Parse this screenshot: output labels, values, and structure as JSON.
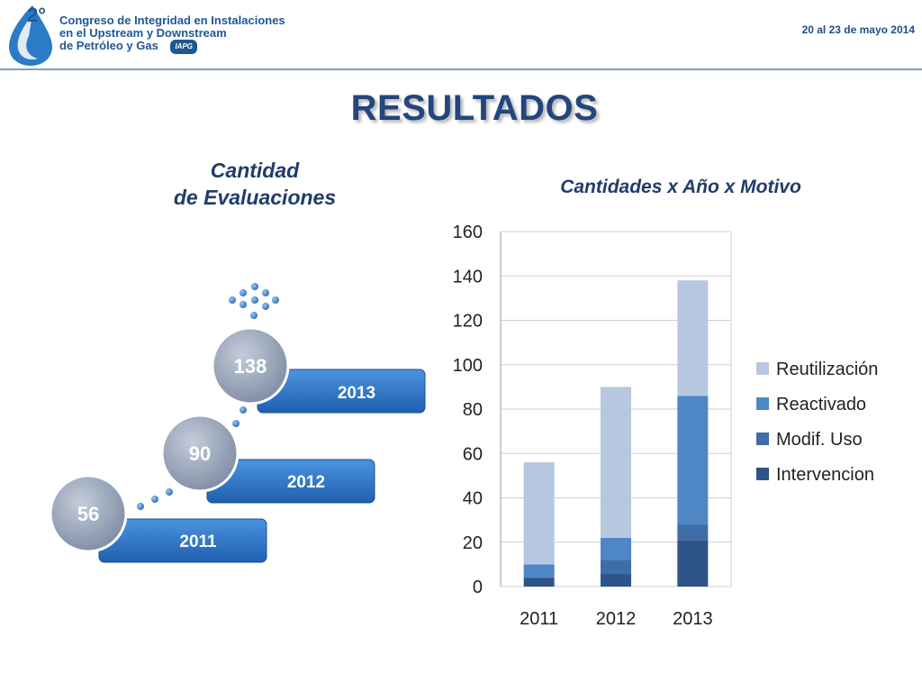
{
  "header": {
    "org_line1": "Congreso de Integridad en Instalaciones",
    "org_line2": "en el Upstream y Downstream",
    "org_line3": "de Petróleo y Gas",
    "logo_number": "2°",
    "badge": "IAPG",
    "date": "20 al 23 de mayo 2014"
  },
  "page_title": "RESULTADOS",
  "left_panel": {
    "title_line1": "Cantidad",
    "title_line2": "de Evaluaciones",
    "items": [
      {
        "year": "2011",
        "count": "56"
      },
      {
        "year": "2012",
        "count": "90"
      },
      {
        "year": "2013",
        "count": "138"
      }
    ]
  },
  "colors": {
    "reutilizacion": "#b8c7e0",
    "reactivado": "#4f86c6",
    "modif_uso": "#3d6ea8",
    "intervencion": "#2f5488",
    "ribbon": "#2a6fc0",
    "circle": "#8f9db3"
  },
  "chart_data": {
    "type": "bar",
    "stacked": true,
    "title": "Cantidades x Año x Motivo",
    "categories": [
      "2011",
      "2012",
      "2013"
    ],
    "ylim": [
      0,
      160
    ],
    "yticks": [
      0,
      20,
      40,
      60,
      80,
      100,
      120,
      140,
      160
    ],
    "grid": true,
    "legend_position": "right",
    "series": [
      {
        "name": "Intervencion",
        "values": [
          4,
          6,
          21
        ],
        "color": "#2f5488"
      },
      {
        "name": "Modif. Uso",
        "values": [
          0,
          6,
          7
        ],
        "color": "#3d6ea8"
      },
      {
        "name": "Reactivado",
        "values": [
          6,
          10,
          58
        ],
        "color": "#4f86c6"
      },
      {
        "name": "Reutilización",
        "values": [
          46,
          68,
          52
        ],
        "color": "#b8c7e0"
      }
    ]
  }
}
